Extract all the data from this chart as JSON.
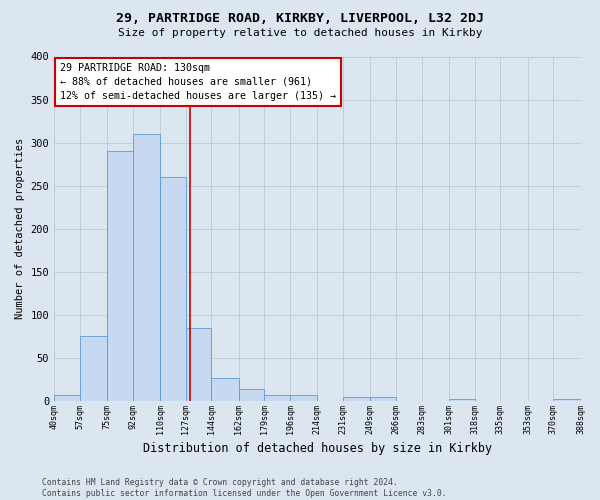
{
  "title1": "29, PARTRIDGE ROAD, KIRKBY, LIVERPOOL, L32 2DJ",
  "title2": "Size of property relative to detached houses in Kirkby",
  "xlabel": "Distribution of detached houses by size in Kirkby",
  "ylabel": "Number of detached properties",
  "footer1": "Contains HM Land Registry data © Crown copyright and database right 2024.",
  "footer2": "Contains public sector information licensed under the Open Government Licence v3.0.",
  "annotation_line1": "29 PARTRIDGE ROAD: 130sqm",
  "annotation_line2": "← 88% of detached houses are smaller (961)",
  "annotation_line3": "12% of semi-detached houses are larger (135) →",
  "property_size": 130,
  "bar_left_edges": [
    40,
    57,
    75,
    92,
    110,
    127,
    144,
    162,
    179,
    196,
    214,
    231,
    249,
    266,
    283,
    301,
    318,
    335,
    353,
    370
  ],
  "bar_widths": [
    17,
    18,
    17,
    18,
    17,
    17,
    18,
    17,
    17,
    18,
    17,
    18,
    17,
    17,
    18,
    17,
    17,
    18,
    17,
    18
  ],
  "bar_heights": [
    7,
    75,
    290,
    310,
    260,
    85,
    27,
    14,
    7,
    7,
    0,
    4,
    4,
    0,
    0,
    2,
    0,
    0,
    0,
    2
  ],
  "bar_color": "#c6d9f0",
  "bar_edge_color": "#5b9bd5",
  "vline_color": "#cc0000",
  "vline_x": 130,
  "annotation_box_color": "#ffffff",
  "annotation_box_edge_color": "#cc0000",
  "grid_color": "#c0c8d8",
  "background_color": "#dce6f1",
  "ylim": [
    0,
    400
  ],
  "yticks": [
    0,
    50,
    100,
    150,
    200,
    250,
    300,
    350,
    400
  ],
  "tick_labels": [
    "40sqm",
    "57sqm",
    "75sqm",
    "92sqm",
    "110sqm",
    "127sqm",
    "144sqm",
    "162sqm",
    "179sqm",
    "196sqm",
    "214sqm",
    "231sqm",
    "249sqm",
    "266sqm",
    "283sqm",
    "301sqm",
    "318sqm",
    "335sqm",
    "353sqm",
    "370sqm",
    "388sqm"
  ]
}
